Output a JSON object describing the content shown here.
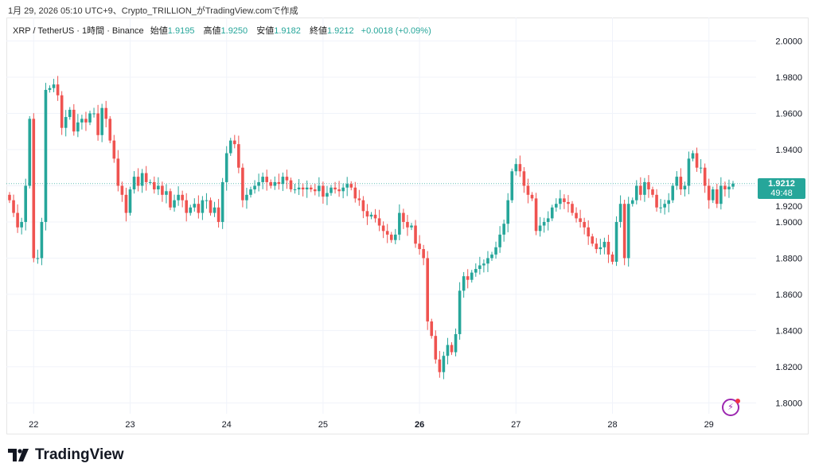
{
  "caption": "1月 29, 2026 05:10 UTC+9、Crypto_TRILLION_がTradingView.comで作成",
  "legend": {
    "symbol": "XRP / TetherUS · 1時間 · Binance",
    "open_label": "始値",
    "open": "1.9195",
    "high_label": "高値",
    "high": "1.9250",
    "low_label": "安値",
    "low": "1.9182",
    "close_label": "終値",
    "close": "1.9212",
    "change": "+0.0018 (+0.09%)"
  },
  "price_tag": {
    "price": "1.9212",
    "countdown": "49:48"
  },
  "brand": "TradingView",
  "colors": {
    "up": "#26a69a",
    "down": "#ef5350",
    "grid": "#f0f3fa",
    "text": "#131722"
  },
  "chart_data": {
    "type": "candlestick",
    "interval": "1時間",
    "ylim": [
      1.783,
      2.013
    ],
    "y_ticks": [
      "1.8000",
      "1.8200",
      "1.8400",
      "1.8600",
      "1.8800",
      "1.9000",
      "1.9200",
      "1.9400",
      "1.9600",
      "1.9800",
      "2.0000"
    ],
    "x_ticks": [
      "22",
      "23",
      "24",
      "25",
      "26",
      "27",
      "28",
      "29"
    ],
    "x_ticks_bold": [
      "26"
    ],
    "grid": true,
    "last_price_line": 1.9212,
    "first_open": 1.915,
    "closes": [
      1.912,
      1.905,
      1.897,
      1.9,
      1.92,
      1.957,
      1.88,
      1.88,
      1.9,
      1.973,
      1.974,
      1.976,
      1.97,
      1.952,
      1.958,
      1.962,
      1.95,
      1.955,
      1.957,
      1.955,
      1.96,
      1.96,
      1.948,
      1.963,
      1.957,
      1.945,
      1.935,
      1.92,
      1.915,
      1.905,
      1.918,
      1.925,
      1.92,
      1.927,
      1.922,
      1.922,
      1.918,
      1.92,
      1.915,
      1.917,
      1.908,
      1.912,
      1.915,
      1.912,
      1.905,
      1.908,
      1.91,
      1.905,
      1.912,
      1.912,
      1.905,
      1.908,
      1.9,
      1.922,
      1.938,
      1.945,
      1.943,
      1.93,
      1.912,
      1.915,
      1.918,
      1.92,
      1.922,
      1.925,
      1.922,
      1.92,
      1.922,
      1.921,
      1.925,
      1.923,
      1.918,
      1.918,
      1.919,
      1.918,
      1.919,
      1.918,
      1.917,
      1.92,
      1.914,
      1.916,
      1.919,
      1.918,
      1.917,
      1.919,
      1.921,
      1.919,
      1.913,
      1.912,
      1.906,
      1.903,
      1.904,
      1.902,
      1.898,
      1.895,
      1.893,
      1.89,
      1.893,
      1.905,
      1.9,
      1.897,
      1.898,
      1.888,
      1.885,
      1.88,
      1.845,
      1.837,
      1.824,
      1.817,
      1.826,
      1.832,
      1.828,
      1.838,
      1.862,
      1.87,
      1.868,
      1.872,
      1.874,
      1.876,
      1.877,
      1.88,
      1.882,
      1.886,
      1.893,
      1.899,
      1.912,
      1.928,
      1.932,
      1.928,
      1.92,
      1.915,
      1.913,
      1.895,
      1.898,
      1.9,
      1.902,
      1.908,
      1.91,
      1.913,
      1.911,
      1.91,
      1.905,
      1.902,
      1.9,
      1.897,
      1.892,
      1.888,
      1.885,
      1.886,
      1.889,
      1.882,
      1.878,
      1.9,
      1.91,
      1.88,
      1.91,
      1.912,
      1.92,
      1.915,
      1.922,
      1.918,
      1.915,
      1.908,
      1.908,
      1.91,
      1.912,
      1.92,
      1.925,
      1.918,
      1.92,
      1.935,
      1.938,
      1.93,
      1.93,
      1.92,
      1.912,
      1.918,
      1.91,
      1.92,
      1.918,
      1.9195,
      1.9212
    ]
  }
}
